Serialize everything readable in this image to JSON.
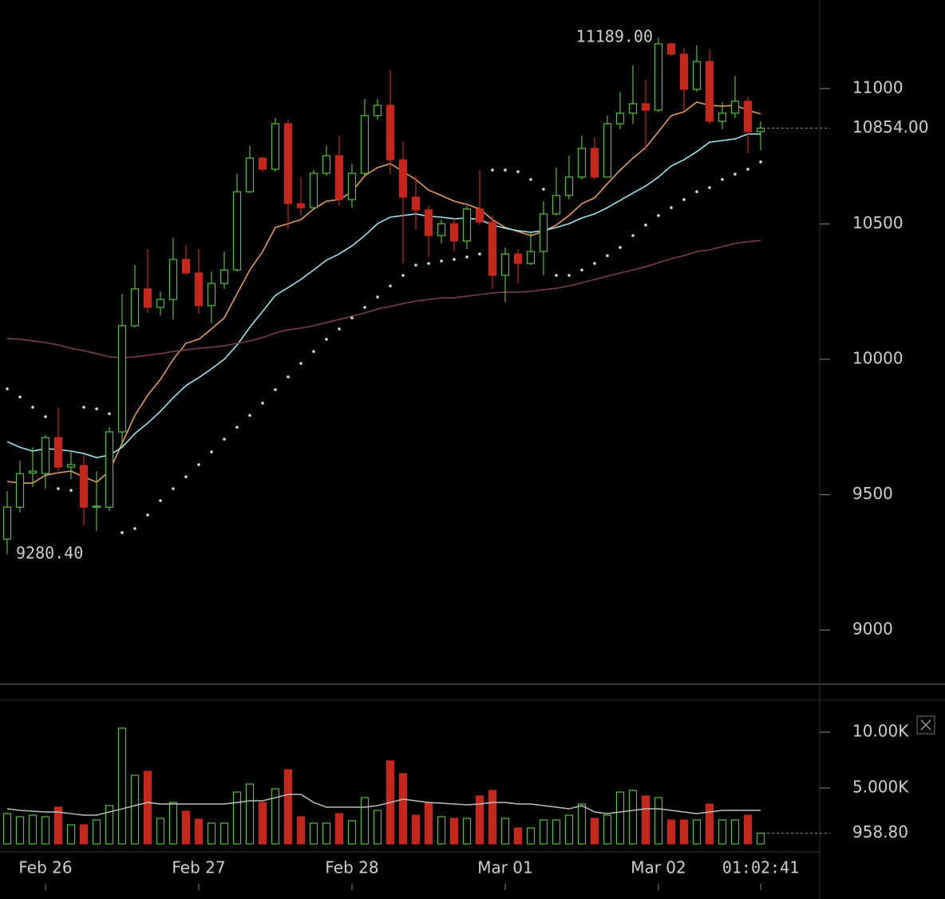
{
  "chart_data": [
    {
      "type": "candlestick",
      "categories": [
        null,
        null,
        null,
        "Feb 26",
        null,
        null,
        null,
        null,
        null,
        null,
        null,
        null,
        null,
        null,
        null,
        "Feb 27",
        null,
        null,
        null,
        null,
        null,
        null,
        null,
        null,
        null,
        null,
        null,
        "Feb 28",
        null,
        null,
        null,
        null,
        null,
        null,
        null,
        null,
        null,
        null,
        null,
        "Mar 01",
        null,
        null,
        null,
        null,
        null,
        null,
        null,
        null,
        null,
        null,
        null,
        "Mar 02",
        null,
        null,
        null,
        null,
        null,
        null,
        null,
        null
      ],
      "open": [
        9336,
        9454,
        9580,
        9578,
        9711,
        9602,
        9608,
        9454,
        9454,
        9732,
        10124,
        10260,
        10192,
        10221,
        10369,
        10319,
        10198,
        10280,
        10330,
        10619,
        10743,
        10702,
        10870,
        10575,
        10560,
        10687,
        10752,
        10590,
        10687,
        10900,
        10938,
        10737,
        10599,
        10552,
        10457,
        10501,
        10437,
        10555,
        10507,
        10310,
        10389,
        10354,
        10398,
        10537,
        10605,
        10673,
        10779,
        10673,
        10870,
        10909,
        10944,
        10920,
        11165,
        11127,
        10997,
        11100,
        10879,
        10909,
        10953,
        10841
      ],
      "high": [
        9513,
        9625,
        9675,
        9720,
        9823,
        9661,
        9646,
        9587,
        9750,
        10242,
        10348,
        10407,
        10251,
        10448,
        10422,
        10407,
        10324,
        10398,
        10684,
        10788,
        10749,
        10891,
        10885,
        10673,
        10699,
        10788,
        10826,
        10723,
        10962,
        10962,
        11068,
        10805,
        10678,
        10566,
        10516,
        10525,
        10566,
        10699,
        10531,
        10413,
        10407,
        10472,
        10584,
        10708,
        10752,
        10826,
        10820,
        10900,
        10988,
        11086,
        11032,
        11189,
        11170,
        11150,
        11159,
        11145,
        10950,
        11047,
        10968,
        10879
      ],
      "low": [
        9280.4,
        9434,
        9528,
        9522,
        9587,
        9557,
        9386,
        9366,
        9440,
        9675,
        10118,
        10171,
        10162,
        10147,
        10310,
        10168,
        10133,
        10260,
        10324,
        10614,
        10693,
        10693,
        10481,
        10531,
        10560,
        10678,
        10566,
        10560,
        10678,
        10885,
        10684,
        10354,
        10478,
        10377,
        10428,
        10398,
        10407,
        10496,
        10260,
        10212,
        10280,
        10348,
        10310,
        10531,
        10590,
        10664,
        10664,
        10693,
        10850,
        10870,
        10773,
        10914,
        11121,
        10920,
        10988,
        10870,
        10850,
        10891,
        10761,
        10773
      ],
      "close": [
        9454,
        9578,
        9587,
        9711,
        9602,
        9611,
        9454,
        9458,
        9732,
        10124,
        10260,
        10192,
        10221,
        10369,
        10319,
        10198,
        10280,
        10330,
        10619,
        10743,
        10702,
        10870,
        10575,
        10560,
        10687,
        10752,
        10590,
        10687,
        10900,
        10938,
        10737,
        10599,
        10552,
        10457,
        10501,
        10437,
        10555,
        10507,
        10310,
        10389,
        10354,
        10398,
        10537,
        10605,
        10673,
        10779,
        10673,
        10870,
        10909,
        10944,
        10920,
        11165,
        11127,
        10997,
        11100,
        10879,
        10909,
        10953,
        10841,
        10854
      ],
      "up_color": "#55c13c",
      "down_color": "#c4281c",
      "overlays": [
        {
          "color": "#e59a5c",
          "values": [
            9549,
            9543,
            9543,
            9572,
            9581,
            9587,
            9566,
            9546,
            9587,
            9690,
            9793,
            9867,
            9926,
            10000,
            10059,
            10074,
            10112,
            10153,
            10242,
            10330,
            10398,
            10487,
            10501,
            10516,
            10555,
            10584,
            10590,
            10619,
            10678,
            10708,
            10723,
            10693,
            10664,
            10625,
            10605,
            10584,
            10572,
            10555,
            10516,
            10487,
            10472,
            10457,
            10472,
            10496,
            10531,
            10575,
            10596,
            10649,
            10699,
            10743,
            10782,
            10841,
            10900,
            10914,
            10950,
            10938,
            10935,
            10938,
            10920,
            10906
          ]
        },
        {
          "color": "#9be3ef",
          "values": [
            9696,
            9675,
            9661,
            9670,
            9667,
            9661,
            9652,
            9637,
            9646,
            9675,
            9726,
            9764,
            9808,
            9858,
            9903,
            9932,
            9965,
            10000,
            10053,
            10118,
            10177,
            10236,
            10265,
            10295,
            10330,
            10366,
            10389,
            10419,
            10457,
            10501,
            10525,
            10531,
            10537,
            10528,
            10525,
            10519,
            10522,
            10516,
            10496,
            10484,
            10475,
            10469,
            10475,
            10487,
            10501,
            10522,
            10537,
            10560,
            10587,
            10614,
            10640,
            10673,
            10714,
            10737,
            10767,
            10802,
            10808,
            10814,
            10832,
            10832
          ]
        },
        {
          "color": "#7a3d4a",
          "values": [
            10077,
            10074,
            10068,
            10062,
            10053,
            10041,
            10032,
            10021,
            10009,
            10006,
            10009,
            10015,
            10021,
            10029,
            10035,
            10041,
            10044,
            10050,
            10059,
            10068,
            10080,
            10097,
            10109,
            10115,
            10124,
            10136,
            10147,
            10159,
            10171,
            10186,
            10195,
            10206,
            10215,
            10221,
            10227,
            10227,
            10233,
            10239,
            10245,
            10248,
            10248,
            10251,
            10257,
            10262,
            10271,
            10283,
            10295,
            10307,
            10319,
            10330,
            10342,
            10357,
            10372,
            10383,
            10398,
            10404,
            10416,
            10428,
            10434,
            10439
          ]
        }
      ],
      "sar": {
        "color": "#d8d8d8",
        "values": [
          9891,
          9861,
          9823,
          9788,
          9522,
          9516,
          9823,
          9817,
          9799,
          9360,
          9375,
          9425,
          9478,
          9522,
          9566,
          9611,
          9658,
          9705,
          9749,
          9793,
          9838,
          9888,
          9935,
          9985,
          10029,
          10074,
          10112,
          10153,
          10192,
          10230,
          10271,
          10310,
          10348,
          10354,
          10363,
          10369,
          10378,
          10389,
          10699,
          10699,
          10693,
          10664,
          10628,
          10310,
          10310,
          10330,
          10354,
          10383,
          10413,
          10457,
          10496,
          10531,
          10560,
          10590,
          10619,
          10634,
          10664,
          10684,
          10702,
          10729
        ]
      },
      "ylim": [
        8800,
        11327
      ],
      "yticks": [
        9000,
        9500,
        10000,
        10500,
        11000
      ],
      "grid": false,
      "high_label": {
        "value": 11189,
        "label": "11189.00"
      },
      "low_label": {
        "value": 9280.4,
        "label": "9280.40"
      },
      "last_label": {
        "value": 10854,
        "label": "10854.00"
      }
    },
    {
      "type": "bar",
      "values": [
        2714,
        2430,
        2570,
        2430,
        3290,
        1710,
        1710,
        2140,
        3430,
        10360,
        6140,
        6500,
        2290,
        3710,
        2930,
        2210,
        1860,
        1860,
        4640,
        5360,
        3710,
        4930,
        6640,
        2430,
        1860,
        1860,
        2710,
        2070,
        4140,
        3000,
        7430,
        6290,
        2570,
        3710,
        2430,
        2290,
        2290,
        4290,
        4790,
        2290,
        1430,
        1430,
        2140,
        2140,
        2570,
        3570,
        2290,
        2570,
        4640,
        4790,
        4290,
        4140,
        2140,
        2140,
        2140,
        3570,
        2140,
        2140,
        2570,
        958.8
      ],
      "average": {
        "color": "#bdbdbd",
        "values": [
          3140,
          3000,
          2930,
          2860,
          2860,
          2710,
          2570,
          2570,
          2860,
          3140,
          3430,
          3710,
          3570,
          3570,
          3570,
          3570,
          3570,
          3570,
          3710,
          3860,
          3860,
          4140,
          4430,
          4430,
          3710,
          3290,
          3290,
          3290,
          3290,
          3430,
          3710,
          4000,
          3860,
          3710,
          3640,
          3570,
          3500,
          3570,
          3710,
          3710,
          3570,
          3570,
          3430,
          3290,
          3140,
          3430,
          2860,
          2710,
          2860,
          3000,
          3140,
          3140,
          3000,
          2860,
          2710,
          2860,
          3000,
          3000,
          3000,
          3000
        ]
      },
      "ylim": [
        0,
        12860
      ],
      "yticks": [
        {
          "value": 10000,
          "label": "10.00K"
        },
        {
          "value": 5000,
          "label": "5.000K"
        }
      ],
      "last_label": {
        "value": 958.8,
        "label": "958.80"
      },
      "countdown": "01:02:41"
    }
  ]
}
